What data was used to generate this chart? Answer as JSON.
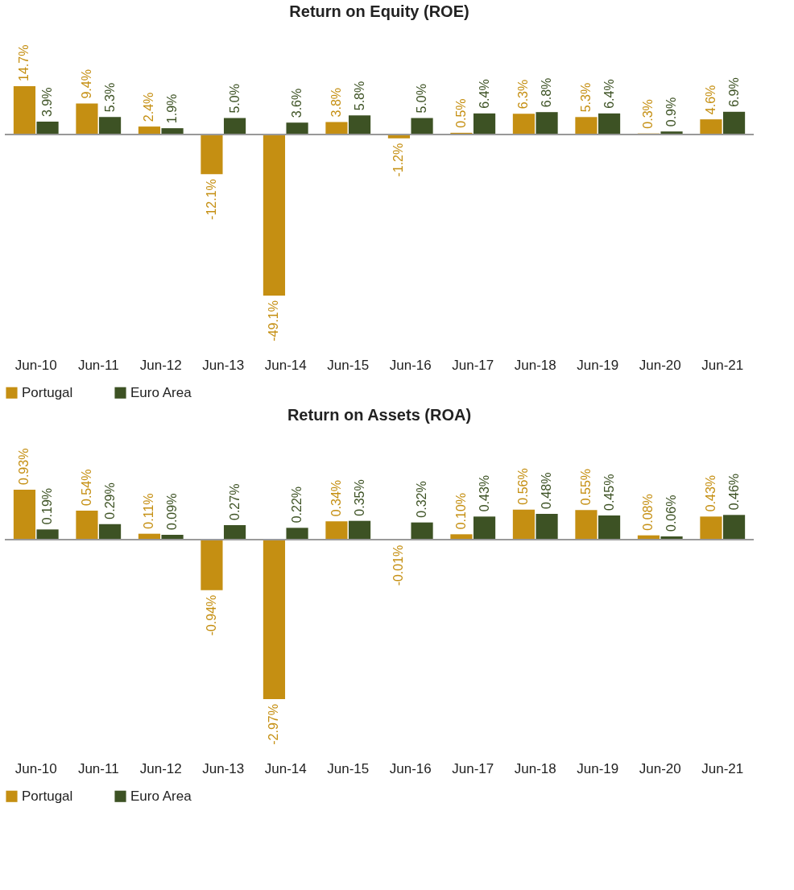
{
  "chart_data": [
    {
      "type": "bar",
      "title": "Return on Equity (ROE)",
      "categories": [
        "Jun-10",
        "Jun-11",
        "Jun-12",
        "Jun-13",
        "Jun-14",
        "Jun-15",
        "Jun-16",
        "Jun-17",
        "Jun-18",
        "Jun-19",
        "Jun-20",
        "Jun-21"
      ],
      "legend": "bottom",
      "tick_labels": "x",
      "series": [
        {
          "name": "Portugal",
          "color": "#c58f12",
          "values": [
            14.7,
            9.4,
            2.4,
            -12.1,
            -49.1,
            3.8,
            -1.2,
            0.5,
            6.3,
            5.3,
            0.3,
            4.6
          ],
          "value_labels": [
            "14.7%",
            "9.4%",
            "2.4%",
            "-12.1%",
            "-49.1%",
            "3.8%",
            "-1.2%",
            "0.5%",
            "6.3%",
            "5.3%",
            "0.3%",
            "4.6%"
          ]
        },
        {
          "name": "Euro Area",
          "color": "#3d5224",
          "values": [
            3.9,
            5.3,
            1.9,
            5.0,
            3.6,
            5.8,
            5.0,
            6.4,
            6.8,
            6.4,
            0.9,
            6.9
          ],
          "value_labels": [
            "3.9%",
            "5.3%",
            "1.9%",
            "5.0%",
            "3.6%",
            "5.8%",
            "5.0%",
            "6.4%",
            "6.8%",
            "6.4%",
            "0.9%",
            "6.9%"
          ]
        }
      ]
    },
    {
      "type": "bar",
      "title": "Return on Assets (ROA)",
      "categories": [
        "Jun-10",
        "Jun-11",
        "Jun-12",
        "Jun-13",
        "Jun-14",
        "Jun-15",
        "Jun-16",
        "Jun-17",
        "Jun-18",
        "Jun-19",
        "Jun-20",
        "Jun-21"
      ],
      "legend": "bottom",
      "tick_labels": "x",
      "series": [
        {
          "name": "Portugal",
          "color": "#c58f12",
          "values": [
            0.93,
            0.54,
            0.11,
            -0.94,
            -2.97,
            0.34,
            -0.01,
            0.1,
            0.56,
            0.55,
            0.08,
            0.43
          ],
          "value_labels": [
            "0.93%",
            "0.54%",
            "0.11%",
            "-0.94%",
            "-2.97%",
            "0.34%",
            "-0.01%",
            "0.10%",
            "0.56%",
            "0.55%",
            "0.08%",
            "0.43%"
          ]
        },
        {
          "name": "Euro Area",
          "color": "#3d5224",
          "values": [
            0.19,
            0.29,
            0.09,
            0.27,
            0.22,
            0.35,
            0.32,
            0.43,
            0.48,
            0.45,
            0.06,
            0.46
          ],
          "value_labels": [
            "0.19%",
            "0.29%",
            "0.09%",
            "0.27%",
            "0.22%",
            "0.35%",
            "0.32%",
            "0.43%",
            "0.48%",
            "0.45%",
            "0.06%",
            "0.46%"
          ]
        }
      ]
    }
  ]
}
